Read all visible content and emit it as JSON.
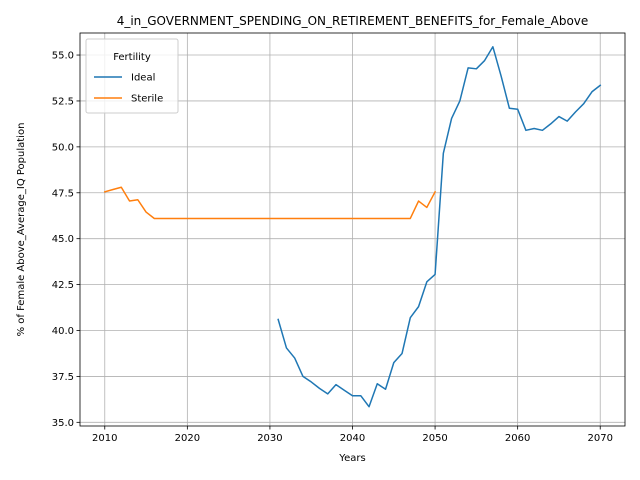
{
  "chart_data": {
    "type": "line",
    "title": "4_in_GOVERNMENT_SPENDING_ON_RETIREMENT_BENEFITS_for_Female_Above",
    "xlabel": "Years",
    "ylabel": "% of Female Above_Average_IQ Population",
    "xlim": [
      2007,
      2073
    ],
    "ylim": [
      34.8,
      56.2
    ],
    "xticks": [
      2010,
      2020,
      2030,
      2040,
      2050,
      2060,
      2070
    ],
    "yticks": [
      35.0,
      37.5,
      40.0,
      42.5,
      45.0,
      47.5,
      50.0,
      52.5,
      55.0
    ],
    "grid": true,
    "legend": {
      "title": "Fertility",
      "placement": "top-left"
    },
    "series": [
      {
        "name": "Ideal",
        "color": "#1f77b4",
        "x": [
          2031,
          2032,
          2033,
          2034,
          2035,
          2036,
          2037,
          2038,
          2039,
          2040,
          2041,
          2042,
          2043,
          2044,
          2045,
          2046,
          2047,
          2048,
          2049,
          2050,
          2051,
          2052,
          2053,
          2054,
          2055,
          2056,
          2057,
          2058,
          2059,
          2060,
          2061,
          2062,
          2063,
          2064,
          2065,
          2066,
          2067,
          2068,
          2069,
          2070
        ],
        "y": [
          40.6,
          39.05,
          38.5,
          37.5,
          37.2,
          36.85,
          36.55,
          37.05,
          36.75,
          36.45,
          36.45,
          35.85,
          37.1,
          36.8,
          38.25,
          38.75,
          40.7,
          41.3,
          42.65,
          43.05,
          49.65,
          51.55,
          52.5,
          54.3,
          54.25,
          54.7,
          55.45,
          53.85,
          52.1,
          52.05,
          50.9,
          51.0,
          50.9,
          51.25,
          51.65,
          51.4,
          51.9,
          52.35,
          53.0,
          53.35
        ]
      },
      {
        "name": "Sterile",
        "color": "#ff7f0e",
        "x": [
          2010,
          2011,
          2012,
          2013,
          2014,
          2015,
          2016,
          2017,
          2018,
          2019,
          2020,
          2021,
          2022,
          2023,
          2024,
          2025,
          2026,
          2027,
          2028,
          2029,
          2030,
          2031,
          2032,
          2033,
          2034,
          2035,
          2036,
          2037,
          2038,
          2039,
          2040,
          2041,
          2042,
          2043,
          2044,
          2045,
          2046,
          2047,
          2048,
          2049,
          2050
        ],
        "y": [
          47.55,
          47.68,
          47.8,
          47.05,
          47.12,
          46.45,
          46.1,
          46.1,
          46.1,
          46.1,
          46.1,
          46.1,
          46.1,
          46.1,
          46.1,
          46.1,
          46.1,
          46.1,
          46.1,
          46.1,
          46.1,
          46.1,
          46.1,
          46.1,
          46.1,
          46.1,
          46.1,
          46.1,
          46.1,
          46.1,
          46.1,
          46.1,
          46.1,
          46.1,
          46.1,
          46.1,
          46.1,
          46.1,
          47.05,
          46.7,
          47.55
        ]
      }
    ]
  }
}
